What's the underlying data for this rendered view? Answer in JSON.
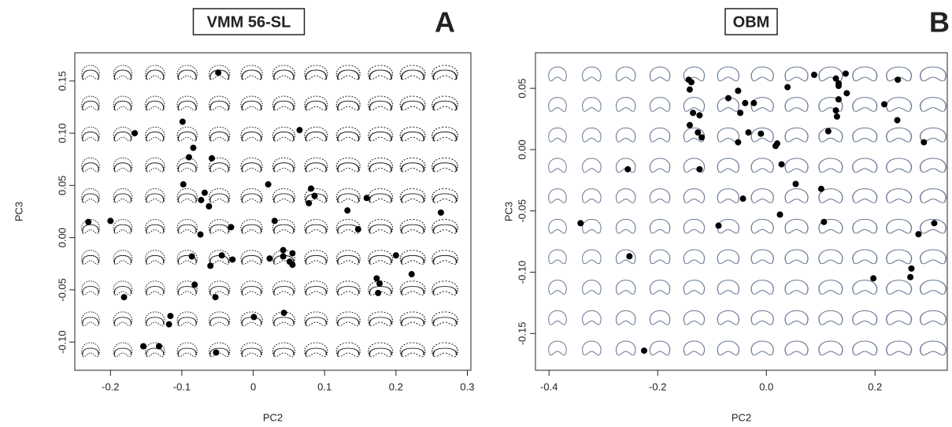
{
  "chart_data": [
    {
      "type": "scatter",
      "title": "VMM 56-SL",
      "panel_label": "A",
      "x_label": "PC2",
      "y_label": "PC3",
      "color": "#000000",
      "xlim": [
        -0.25,
        0.305
      ],
      "ylim": [
        -0.127,
        0.177
      ],
      "xticks": [
        -0.2,
        -0.1,
        {
          "value": 0,
          "label": "0"
        },
        0.1,
        0.2,
        0.3
      ],
      "yticks": [
        {
          "value": -0.1,
          "label": "-0.10"
        },
        -0.05,
        {
          "value": 0,
          "label": "0.00"
        },
        0.05,
        {
          "value": 0.1,
          "label": "0.10"
        },
        0.15
      ],
      "x": [
        -0.049,
        -0.166,
        -0.099,
        -0.084,
        -0.09,
        -0.058,
        0.065,
        -0.098,
        -0.068,
        -0.073,
        0.021,
        0.081,
        0.086,
        0.078,
        0.159,
        0.132,
        0.263,
        -0.231,
        -0.2,
        -0.062,
        -0.031,
        -0.074,
        0.03,
        0.147,
        -0.086,
        -0.044,
        -0.029,
        -0.06,
        0.023,
        0.042,
        0.055,
        0.042,
        0.051,
        0.055,
        0.2,
        0.222,
        0.173,
        0.177,
        0.175,
        -0.082,
        -0.181,
        -0.053,
        -0.116,
        -0.118,
        0.001,
        0.043,
        -0.154,
        -0.132,
        -0.052
      ],
      "values": [
        0.158,
        0.1,
        0.111,
        0.086,
        0.077,
        0.076,
        0.103,
        0.051,
        0.043,
        0.036,
        0.051,
        0.047,
        0.04,
        0.033,
        0.038,
        0.026,
        0.024,
        0.015,
        0.016,
        0.03,
        0.01,
        0.003,
        0.016,
        0.008,
        -0.018,
        -0.017,
        -0.021,
        -0.027,
        -0.02,
        -0.012,
        -0.015,
        -0.018,
        -0.023,
        -0.026,
        -0.017,
        -0.035,
        -0.039,
        -0.044,
        -0.053,
        -0.045,
        -0.057,
        -0.057,
        -0.075,
        -0.083,
        -0.076,
        -0.072,
        -0.104,
        -0.104,
        -0.11
      ]
    },
    {
      "type": "scatter",
      "title": "OBM",
      "panel_label": "B",
      "x_label": "PC2",
      "y_label": "PC3",
      "color": "#000000",
      "xlim": [
        -0.425,
        0.333
      ],
      "ylim": [
        -0.18,
        0.079
      ],
      "xticks": [
        -0.4,
        -0.2,
        {
          "value": 0,
          "label": "0.0"
        },
        0.2
      ],
      "yticks": [
        -0.15,
        {
          "value": -0.1,
          "label": "-0.10"
        },
        -0.05,
        {
          "value": 0,
          "label": "0.00"
        },
        0.05
      ],
      "x": [
        0.088,
        0.242,
        0.128,
        0.133,
        0.146,
        -0.143,
        -0.138,
        -0.141,
        -0.052,
        0.039,
        0.133,
        0.148,
        -0.07,
        -0.039,
        -0.023,
        0.133,
        0.217,
        0.128,
        0.13,
        -0.123,
        -0.135,
        -0.048,
        -0.141,
        0.241,
        -0.126,
        -0.119,
        -0.033,
        -0.01,
        0.114,
        -0.052,
        0.02,
        0.017,
        0.29,
        0.028,
        -0.255,
        -0.123,
        0.054,
        0.101,
        -0.043,
        0.025,
        -0.342,
        -0.088,
        0.106,
        0.309,
        0.28,
        -0.252,
        0.267,
        0.265,
        0.197,
        -0.225
      ],
      "values": [
        0.061,
        0.057,
        0.058,
        0.054,
        0.062,
        0.057,
        0.055,
        0.049,
        0.048,
        0.051,
        0.052,
        0.046,
        0.042,
        0.038,
        0.038,
        0.041,
        0.037,
        0.032,
        0.027,
        0.028,
        0.03,
        0.03,
        0.02,
        0.024,
        0.014,
        0.01,
        0.014,
        0.013,
        0.015,
        0.006,
        0.005,
        0.003,
        0.006,
        -0.012,
        -0.016,
        -0.016,
        -0.028,
        -0.032,
        -0.04,
        -0.053,
        -0.06,
        -0.062,
        -0.059,
        -0.06,
        -0.069,
        -0.087,
        -0.097,
        -0.104,
        -0.105,
        -0.164
      ]
    }
  ]
}
